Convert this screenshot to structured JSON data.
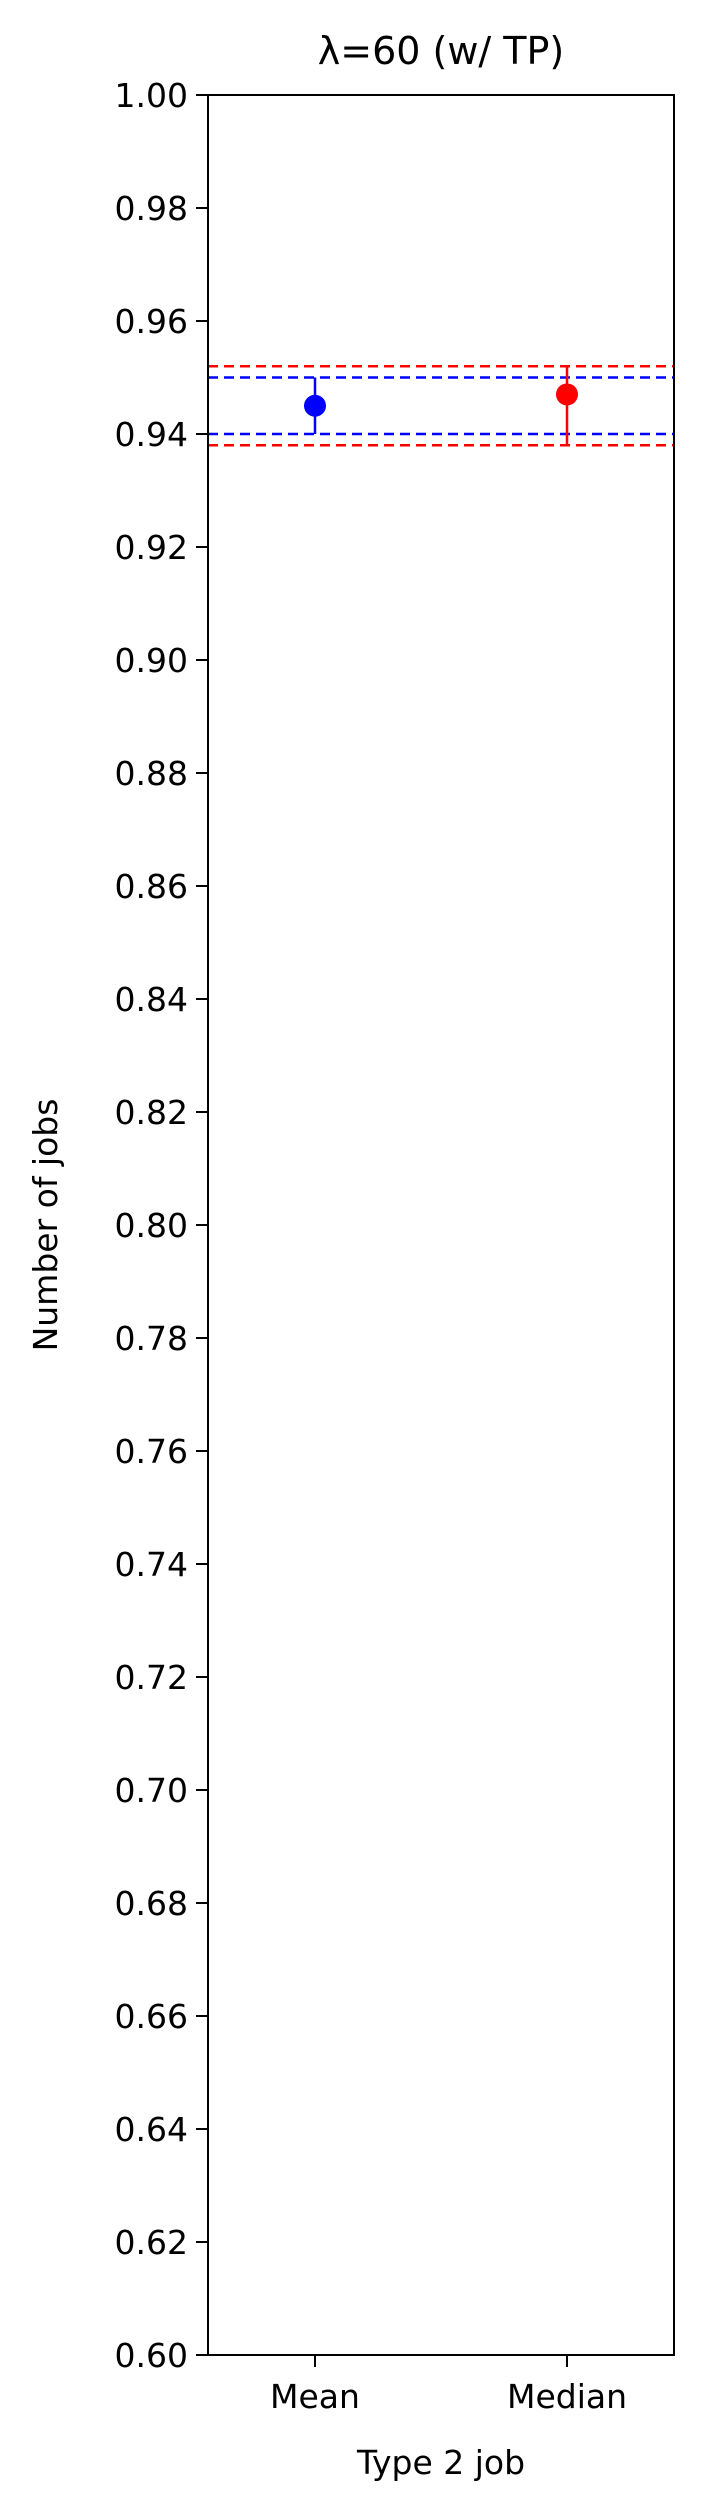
{
  "chart_data": {
    "type": "scatter",
    "title": "λ=60 (w/ TP)",
    "xlabel": "Type 2 job",
    "ylabel": "Number of jobs",
    "ylim": [
      0.6,
      1.0
    ],
    "yticks": [
      0.6,
      0.62,
      0.64,
      0.66,
      0.68,
      0.7,
      0.72,
      0.74,
      0.76,
      0.78,
      0.8,
      0.82,
      0.84,
      0.86,
      0.88,
      0.9,
      0.92,
      0.94,
      0.96,
      0.98,
      1.0
    ],
    "categories": [
      "Mean",
      "Median"
    ],
    "points": [
      {
        "category": "Mean",
        "value": 0.945,
        "err_low": 0.94,
        "err_high": 0.95,
        "color": "#0000ff"
      },
      {
        "category": "Median",
        "value": 0.947,
        "err_low": 0.938,
        "err_high": 0.952,
        "color": "#ff0000"
      }
    ],
    "reference_lines": [
      {
        "y": 0.95,
        "color": "#0000ff",
        "style": "dashed"
      },
      {
        "y": 0.94,
        "color": "#0000ff",
        "style": "dashed"
      },
      {
        "y": 0.952,
        "color": "#ff0000",
        "style": "dashed"
      },
      {
        "y": 0.938,
        "color": "#ff0000",
        "style": "dashed"
      }
    ],
    "grid": false
  }
}
